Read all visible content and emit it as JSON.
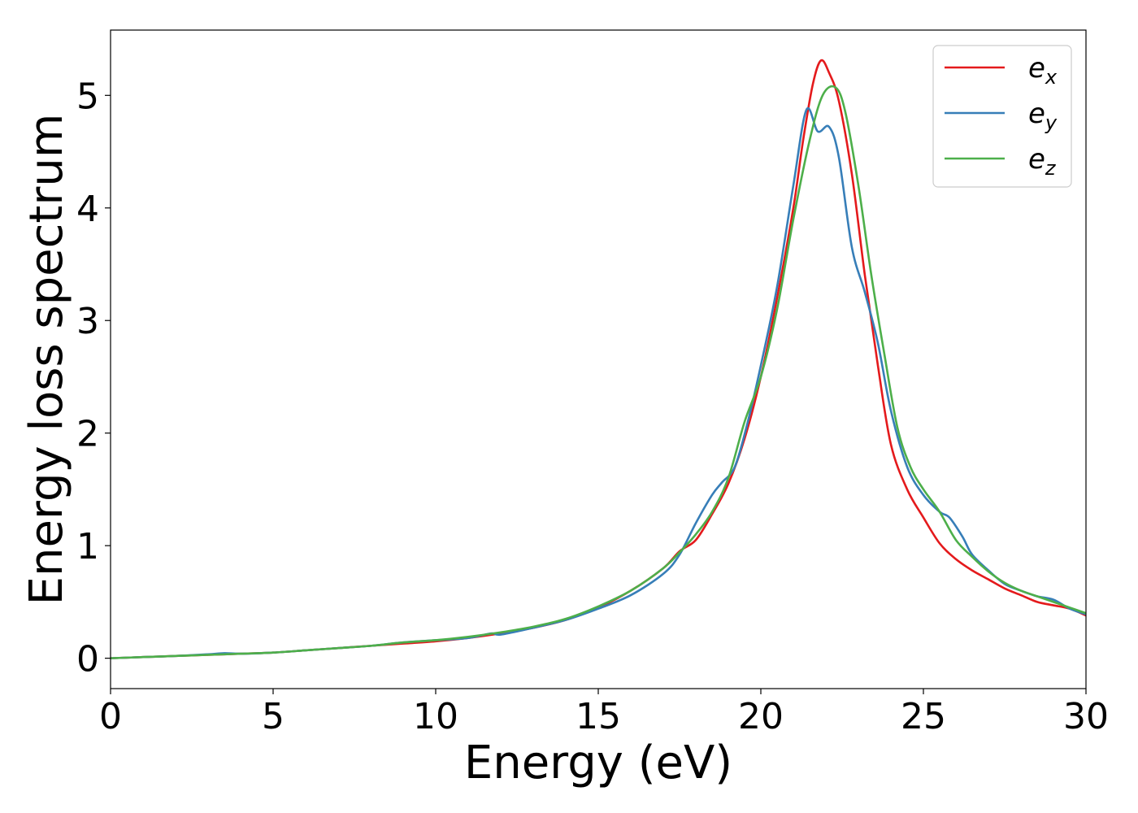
{
  "chart_data": {
    "type": "line",
    "xlabel": "Energy (eV)",
    "ylabel": "Energy loss spectrum",
    "xlim": [
      0,
      30
    ],
    "ylim": [
      -0.27,
      5.58
    ],
    "xticks": [
      0,
      5,
      10,
      15,
      20,
      25,
      30
    ],
    "yticks": [
      0,
      1,
      2,
      3,
      4,
      5
    ],
    "grid": false,
    "legend_position": "top-right",
    "series": [
      {
        "name": "e",
        "subscript": "x",
        "color": "#e41a1c",
        "x": [
          0,
          1,
          2,
          3,
          4,
          5,
          6,
          7,
          8,
          9,
          10,
          11,
          12,
          13,
          14,
          15,
          16,
          17,
          17.5,
          18,
          18.5,
          19,
          19.5,
          20,
          20.5,
          21,
          21.3,
          21.6,
          21.85,
          22.1,
          22.4,
          22.8,
          23.2,
          23.6,
          24,
          24.5,
          25,
          25.5,
          26,
          26.5,
          27,
          27.5,
          28,
          28.5,
          29,
          29.5,
          30
        ],
        "y": [
          0.0,
          0.01,
          0.02,
          0.03,
          0.04,
          0.05,
          0.07,
          0.09,
          0.11,
          0.13,
          0.15,
          0.18,
          0.22,
          0.27,
          0.34,
          0.45,
          0.6,
          0.8,
          0.95,
          1.05,
          1.28,
          1.55,
          1.95,
          2.5,
          3.2,
          4.0,
          4.6,
          5.1,
          5.31,
          5.2,
          4.95,
          4.3,
          3.4,
          2.6,
          1.9,
          1.5,
          1.25,
          1.02,
          0.88,
          0.78,
          0.7,
          0.62,
          0.56,
          0.5,
          0.47,
          0.44,
          0.38
        ]
      },
      {
        "name": "e",
        "subscript": "y",
        "color": "#377eb8",
        "x": [
          0,
          1,
          2,
          3,
          3.5,
          4,
          5,
          6,
          7,
          8,
          9,
          10,
          11,
          11.7,
          12,
          13,
          14,
          15,
          16,
          17,
          17.5,
          18,
          18.5,
          18.8,
          19.2,
          19.6,
          20,
          20.5,
          21,
          21.4,
          21.75,
          22.1,
          22.4,
          22.8,
          23.2,
          23.6,
          24,
          24.5,
          25,
          25.5,
          25.8,
          26.2,
          26.5,
          27,
          27.5,
          28,
          28.5,
          29,
          29.5,
          30
        ],
        "y": [
          0.0,
          0.01,
          0.02,
          0.035,
          0.045,
          0.04,
          0.05,
          0.07,
          0.09,
          0.11,
          0.14,
          0.16,
          0.18,
          0.22,
          0.21,
          0.27,
          0.34,
          0.44,
          0.56,
          0.75,
          0.92,
          1.2,
          1.45,
          1.56,
          1.7,
          2.1,
          2.6,
          3.3,
          4.2,
          4.87,
          4.68,
          4.72,
          4.45,
          3.65,
          3.25,
          2.8,
          2.2,
          1.7,
          1.45,
          1.3,
          1.25,
          1.08,
          0.92,
          0.78,
          0.66,
          0.6,
          0.55,
          0.52,
          0.44,
          0.39
        ]
      },
      {
        "name": "e",
        "subscript": "z",
        "color": "#4daf4a",
        "x": [
          0,
          1,
          2,
          3,
          4,
          5,
          6,
          7,
          8,
          9,
          10,
          11,
          12,
          13,
          14,
          15,
          16,
          17,
          17.5,
          18,
          18.5,
          19,
          19.5,
          20,
          20.5,
          21,
          21.5,
          21.9,
          22.3,
          22.6,
          23,
          23.4,
          23.8,
          24.2,
          24.6,
          25,
          25.5,
          26,
          26.5,
          27,
          27.5,
          28,
          28.5,
          29,
          29.5,
          30
        ],
        "y": [
          0.0,
          0.01,
          0.02,
          0.03,
          0.04,
          0.05,
          0.07,
          0.09,
          0.11,
          0.14,
          0.16,
          0.19,
          0.23,
          0.28,
          0.35,
          0.46,
          0.6,
          0.8,
          0.94,
          1.1,
          1.3,
          1.6,
          2.1,
          2.5,
          3.1,
          3.9,
          4.6,
          5.0,
          5.07,
          4.85,
          4.2,
          3.4,
          2.7,
          2.05,
          1.7,
          1.5,
          1.3,
          1.05,
          0.9,
          0.77,
          0.67,
          0.6,
          0.55,
          0.5,
          0.45,
          0.4
        ]
      }
    ]
  }
}
